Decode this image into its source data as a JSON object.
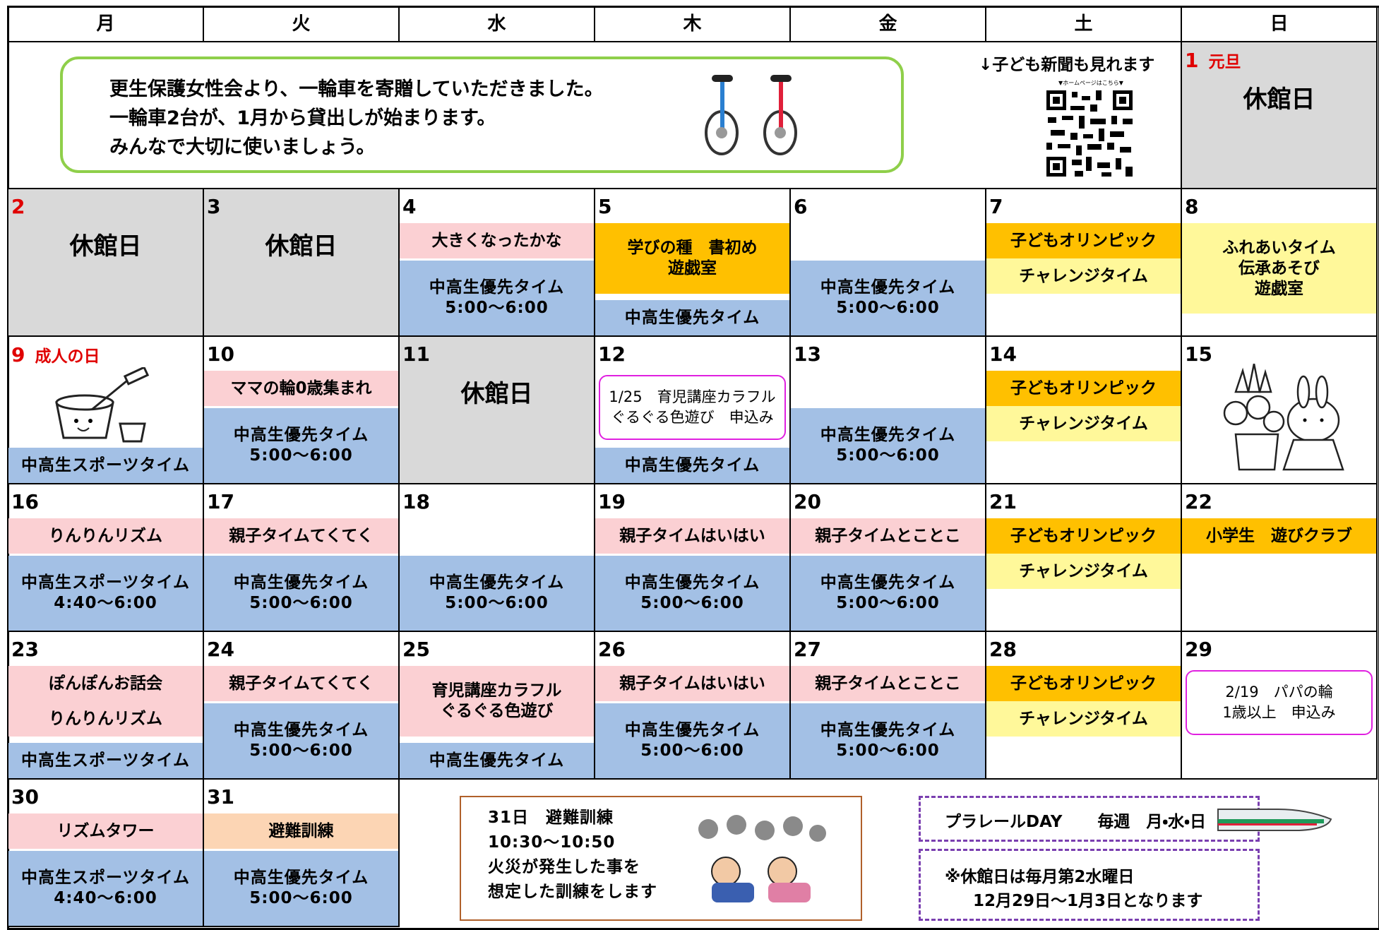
{
  "header": {
    "weekdays": [
      "月",
      "火",
      "水",
      "木",
      "金",
      "土",
      "日"
    ]
  },
  "banner": {
    "lines": [
      "更生保護女性会より、一輪車を寄贈していただきました。",
      "一輪車2台が、1月から貸出しが始まります。",
      "みんなで大切に使いましょう。"
    ]
  },
  "qr": {
    "caption": "↓子ども新聞も見れます",
    "label": "▼ホームページはこちら▼"
  },
  "days": [
    {
      "date": "1",
      "note": "元旦",
      "color": "#e00000",
      "closed": "休館日",
      "events": []
    },
    {
      "date": "2",
      "color": "#e00000",
      "closed": "休館日",
      "events": []
    },
    {
      "date": "3",
      "closed": "休館日",
      "events": []
    },
    {
      "date": "4",
      "events": [
        {
          "kind": "pink",
          "lines": [
            "大きくなったかな"
          ]
        },
        {
          "kind": "blue",
          "lines": [
            "中高生優先タイム",
            "5:00〜6:00"
          ]
        }
      ]
    },
    {
      "date": "5",
      "events": [
        {
          "kind": "orange",
          "lines": [
            "学びの種　書初め",
            "遊戯室"
          ]
        },
        {
          "kind": "blue",
          "lines": [
            "中高生優先タイム"
          ]
        }
      ]
    },
    {
      "date": "6",
      "events": [
        {
          "kind": "blue",
          "lines": [
            "中高生優先タイム",
            "5:00〜6:00"
          ]
        }
      ]
    },
    {
      "date": "7",
      "events": [
        {
          "kind": "orange",
          "lines": [
            "子どもオリンピック"
          ]
        },
        {
          "kind": "yellow",
          "lines": [
            "チャレンジタイム"
          ]
        }
      ]
    },
    {
      "date": "8",
      "events": [
        {
          "kind": "yellow",
          "lines": [
            "ふれあいタイム",
            "伝承あそび",
            "遊戯室"
          ]
        }
      ]
    },
    {
      "date": "9",
      "note": "成人の日",
      "color": "#e00000",
      "events": [
        {
          "kind": "blue",
          "lines": [
            "中高生スポーツタイム"
          ]
        }
      ]
    },
    {
      "date": "10",
      "events": [
        {
          "kind": "pink",
          "lines": [
            "ママの輪0歳集まれ"
          ]
        },
        {
          "kind": "blue",
          "lines": [
            "中高生優先タイム",
            "5:00〜6:00"
          ]
        }
      ]
    },
    {
      "date": "11",
      "closed": "休館日",
      "events": []
    },
    {
      "date": "12",
      "events": [
        {
          "kind": "outline",
          "lines": [
            "1/25　育児講座カラフル",
            "ぐるぐる色遊び　申込み"
          ]
        },
        {
          "kind": "blue",
          "lines": [
            "中高生優先タイム"
          ]
        }
      ]
    },
    {
      "date": "13",
      "events": [
        {
          "kind": "blue",
          "lines": [
            "中高生優先タイム",
            "5:00〜6:00"
          ]
        }
      ]
    },
    {
      "date": "14",
      "events": [
        {
          "kind": "orange",
          "lines": [
            "子どもオリンピック"
          ]
        },
        {
          "kind": "yellow",
          "lines": [
            "チャレンジタイム"
          ]
        }
      ]
    },
    {
      "date": "15",
      "events": []
    },
    {
      "date": "16",
      "events": [
        {
          "kind": "pink",
          "lines": [
            "りんりんリズム"
          ]
        },
        {
          "kind": "blue",
          "lines": [
            "中高生スポーツタイム",
            "4:40〜6:00"
          ]
        }
      ]
    },
    {
      "date": "17",
      "events": [
        {
          "kind": "pink",
          "lines": [
            "親子タイムてくてく"
          ]
        },
        {
          "kind": "blue",
          "lines": [
            "中高生優先タイム",
            "5:00〜6:00"
          ]
        }
      ]
    },
    {
      "date": "18",
      "events": [
        {
          "kind": "blue",
          "lines": [
            "中高生優先タイム",
            "5:00〜6:00"
          ]
        }
      ]
    },
    {
      "date": "19",
      "events": [
        {
          "kind": "pink",
          "lines": [
            "親子タイムはいはい"
          ]
        },
        {
          "kind": "blue",
          "lines": [
            "中高生優先タイム",
            "5:00〜6:00"
          ]
        }
      ]
    },
    {
      "date": "20",
      "events": [
        {
          "kind": "pink",
          "lines": [
            "親子タイムとことこ"
          ]
        },
        {
          "kind": "blue",
          "lines": [
            "中高生優先タイム",
            "5:00〜6:00"
          ]
        }
      ]
    },
    {
      "date": "21",
      "events": [
        {
          "kind": "orange",
          "lines": [
            "子どもオリンピック"
          ]
        },
        {
          "kind": "yellow",
          "lines": [
            "チャレンジタイム"
          ]
        }
      ]
    },
    {
      "date": "22",
      "events": [
        {
          "kind": "orange",
          "lines": [
            "小学生　遊びクラブ"
          ]
        }
      ]
    },
    {
      "date": "23",
      "events": [
        {
          "kind": "pink",
          "lines": [
            "ぽんぽんお話会"
          ]
        },
        {
          "kind": "pink",
          "lines": [
            "りんりんリズム"
          ]
        },
        {
          "kind": "blue",
          "lines": [
            "中高生スポーツタイム"
          ]
        }
      ]
    },
    {
      "date": "24",
      "events": [
        {
          "kind": "pink",
          "lines": [
            "親子タイムてくてく"
          ]
        },
        {
          "kind": "blue",
          "lines": [
            "中高生優先タイム",
            "5:00〜6:00"
          ]
        }
      ]
    },
    {
      "date": "25",
      "events": [
        {
          "kind": "pink",
          "lines": [
            "育児講座カラフル",
            "ぐるぐる色遊び"
          ]
        },
        {
          "kind": "blue",
          "lines": [
            "中高生優先タイム"
          ]
        }
      ]
    },
    {
      "date": "26",
      "events": [
        {
          "kind": "pink",
          "lines": [
            "親子タイムはいはい"
          ]
        },
        {
          "kind": "blue",
          "lines": [
            "中高生優先タイム",
            "5:00〜6:00"
          ]
        }
      ]
    },
    {
      "date": "27",
      "events": [
        {
          "kind": "pink",
          "lines": [
            "親子タイムとことこ"
          ]
        },
        {
          "kind": "blue",
          "lines": [
            "中高生優先タイム",
            "5:00〜6:00"
          ]
        }
      ]
    },
    {
      "date": "28",
      "events": [
        {
          "kind": "orange",
          "lines": [
            "子どもオリンピック"
          ]
        },
        {
          "kind": "yellow",
          "lines": [
            "チャレンジタイム"
          ]
        }
      ]
    },
    {
      "date": "29",
      "events": [
        {
          "kind": "outline",
          "lines": [
            "2/19　パパの輪",
            "1歳以上　申込み"
          ]
        }
      ]
    },
    {
      "date": "30",
      "events": [
        {
          "kind": "pink",
          "lines": [
            "リズムタワー"
          ]
        },
        {
          "kind": "blue",
          "lines": [
            "中高生スポーツタイム",
            "4:40〜6:00"
          ]
        }
      ]
    },
    {
      "date": "31",
      "events": [
        {
          "kind": "peach",
          "lines": [
            "避難訓練"
          ]
        },
        {
          "kind": "blue",
          "lines": [
            "中高生優先タイム",
            "5:00〜6:00"
          ]
        }
      ]
    }
  ],
  "notices": {
    "drill": {
      "lines": [
        "31日　避難訓練",
        "10:30〜10:50",
        "火災が発生した事を",
        "想定した訓練をします"
      ]
    },
    "plarail": {
      "title": "プラレールDAY",
      "schedule": "毎週　月・水・日"
    },
    "closure": {
      "lines": [
        "※休館日は毎月第2水曜日",
        "12月29日〜1月3日となります"
      ]
    }
  }
}
